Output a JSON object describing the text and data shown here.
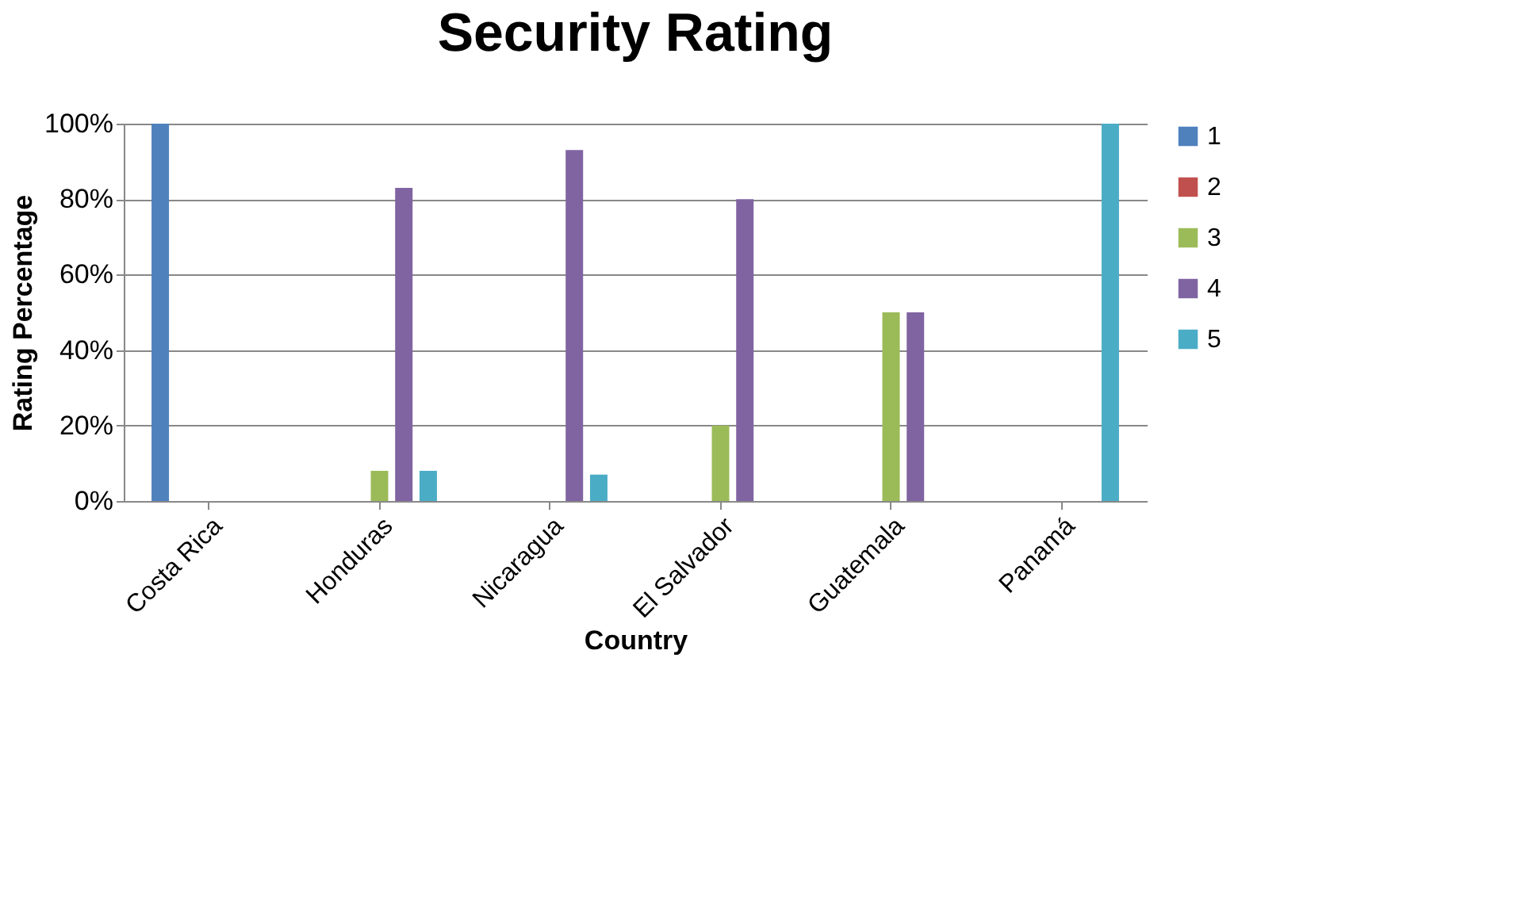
{
  "chart_data": {
    "type": "bar",
    "title": "Security Rating",
    "xlabel": "Country",
    "ylabel": "Rating Percentage",
    "categories": [
      "Costa Rica",
      "Honduras",
      "Nicaragua",
      "El Salvador",
      "Guatemala",
      "Panamá"
    ],
    "series": [
      {
        "name": "1",
        "color": "#4f81bd",
        "values": [
          100,
          0,
          0,
          0,
          0,
          0
        ]
      },
      {
        "name": "2",
        "color": "#c0504d",
        "values": [
          0,
          0,
          0,
          0,
          0,
          0
        ]
      },
      {
        "name": "3",
        "color": "#9bbb59",
        "values": [
          0,
          8,
          0,
          20,
          50,
          0
        ]
      },
      {
        "name": "4",
        "color": "#8064a2",
        "values": [
          0,
          83,
          93,
          80,
          50,
          0
        ]
      },
      {
        "name": "5",
        "color": "#4bacc6",
        "values": [
          0,
          8,
          7,
          0,
          0,
          100
        ]
      }
    ],
    "ylim": [
      0,
      100
    ],
    "yticks": [
      {
        "value": 0,
        "label": "0%"
      },
      {
        "value": 20,
        "label": "20%"
      },
      {
        "value": 40,
        "label": "40%"
      },
      {
        "value": 60,
        "label": "60%"
      },
      {
        "value": 80,
        "label": "80%"
      },
      {
        "value": 100,
        "label": "100%"
      }
    ],
    "grid": "y",
    "legend": "right"
  }
}
